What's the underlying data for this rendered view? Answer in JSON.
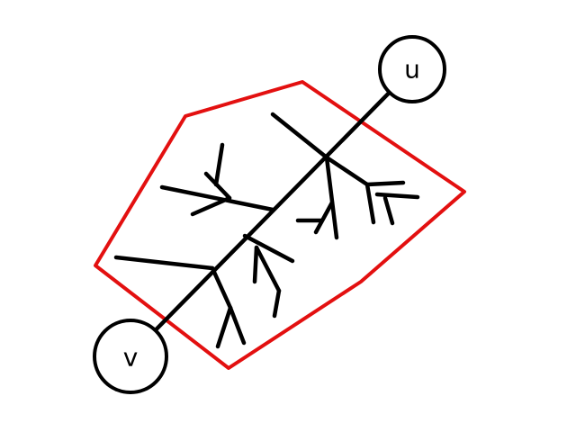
{
  "diagram": {
    "nodes": {
      "u": {
        "label": "u"
      },
      "v": {
        "label": "v"
      }
    },
    "colors": {
      "region": "#e31010",
      "tree": "#000000",
      "background": "#ffffff"
    }
  }
}
